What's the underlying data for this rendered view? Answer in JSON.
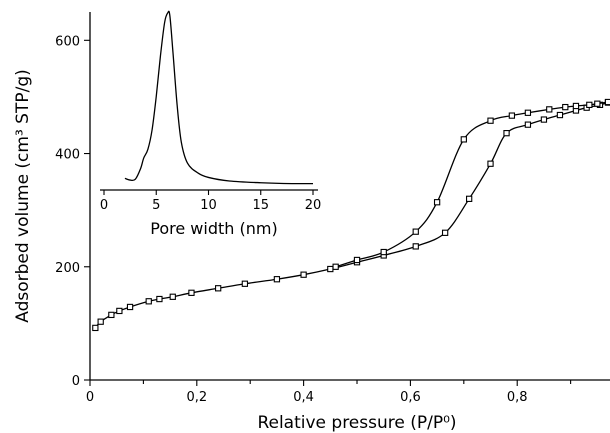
{
  "chart_data": [
    {
      "type": "line",
      "title": "",
      "xlabel": "Relative pressure (P/P⁰)",
      "ylabel": "Adsorbed volume (cm³ STP/g)",
      "xlim": [
        0,
        0.97
      ],
      "ylim": [
        0,
        650
      ],
      "x_ticks": [
        "0",
        "0,2",
        "0,4",
        "0,6",
        "0,8"
      ],
      "x_tick_values": [
        0,
        0.2,
        0.4,
        0.6,
        0.8
      ],
      "y_ticks": [
        "0",
        "200",
        "400",
        "600"
      ],
      "y_tick_values": [
        0,
        200,
        400,
        600
      ],
      "grid": false,
      "markers": "open-square",
      "series": [
        {
          "x": [
            0.01,
            0.02,
            0.04,
            0.055,
            0.075,
            0.11,
            0.13,
            0.155,
            0.19,
            0.24,
            0.29,
            0.35,
            0.4,
            0.45,
            0.5,
            0.55,
            0.61,
            0.665,
            0.71,
            0.75,
            0.78,
            0.82,
            0.85,
            0.88,
            0.91,
            0.93,
            0.955,
            0.97
          ],
          "y": [
            92,
            103,
            115,
            122,
            129,
            139,
            143,
            147,
            154,
            162,
            170,
            178,
            186,
            196,
            208,
            220,
            236,
            260,
            320,
            382,
            436,
            451,
            460,
            468,
            476,
            481,
            486,
            490
          ]
        },
        {
          "x": [
            0.46,
            0.5,
            0.55,
            0.61,
            0.65,
            0.7,
            0.75,
            0.79,
            0.82,
            0.86,
            0.89,
            0.91,
            0.935,
            0.95,
            0.97
          ],
          "y": [
            200,
            212,
            226,
            262,
            314,
            425,
            458,
            467,
            472,
            478,
            482,
            484,
            486,
            488,
            491
          ]
        }
      ]
    },
    {
      "type": "line",
      "title": "",
      "xlabel": "Pore width (nm)",
      "ylabel": "",
      "xlim": [
        0,
        20
      ],
      "ylim": [
        0,
        1
      ],
      "x_ticks": [
        "0",
        "5",
        "10",
        "15",
        "20"
      ],
      "x_tick_values": [
        0,
        5,
        10,
        15,
        20
      ],
      "y_ticks": [],
      "grid": false,
      "series": [
        {
          "x": [
            2.0,
            2.5,
            3.0,
            3.5,
            3.8,
            4.2,
            4.6,
            5.0,
            5.4,
            5.8,
            6.1,
            6.3,
            6.6,
            7.0,
            7.4,
            8.0,
            9.0,
            10.0,
            12.0,
            15.0,
            18.0,
            20.0
          ],
          "y": [
            0.055,
            0.045,
            0.05,
            0.11,
            0.17,
            0.22,
            0.33,
            0.52,
            0.75,
            0.94,
            0.995,
            0.98,
            0.77,
            0.47,
            0.26,
            0.14,
            0.085,
            0.06,
            0.04,
            0.03,
            0.025,
            0.025
          ]
        }
      ]
    }
  ]
}
